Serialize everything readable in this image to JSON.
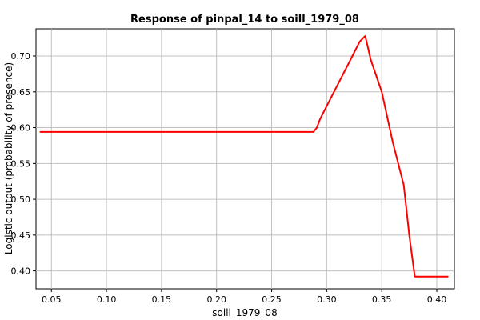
{
  "chart_data": {
    "type": "line",
    "title": "Response of pinpal_14 to soill_1979_08",
    "xlabel": "soill_1979_08",
    "ylabel": "Logistic output (probability of presence)",
    "xlim": [
      0.036,
      0.416
    ],
    "ylim": [
      0.375,
      0.738
    ],
    "x_ticks": [
      "0.05",
      "0.10",
      "0.15",
      "0.20",
      "0.25",
      "0.30",
      "0.35",
      "0.40"
    ],
    "y_ticks": [
      "0.40",
      "0.45",
      "0.50",
      "0.55",
      "0.60",
      "0.65",
      "0.70"
    ],
    "grid": true,
    "series": [
      {
        "color": "#ff0000",
        "x": [
          0.04,
          0.288,
          0.291,
          0.294,
          0.3,
          0.31,
          0.32,
          0.33,
          0.335,
          0.337,
          0.34,
          0.35,
          0.36,
          0.37,
          0.375,
          0.38,
          0.41
        ],
        "y": [
          0.594,
          0.594,
          0.6,
          0.612,
          0.63,
          0.66,
          0.69,
          0.72,
          0.728,
          0.715,
          0.695,
          0.65,
          0.58,
          0.52,
          0.45,
          0.392,
          0.392
        ]
      }
    ]
  }
}
